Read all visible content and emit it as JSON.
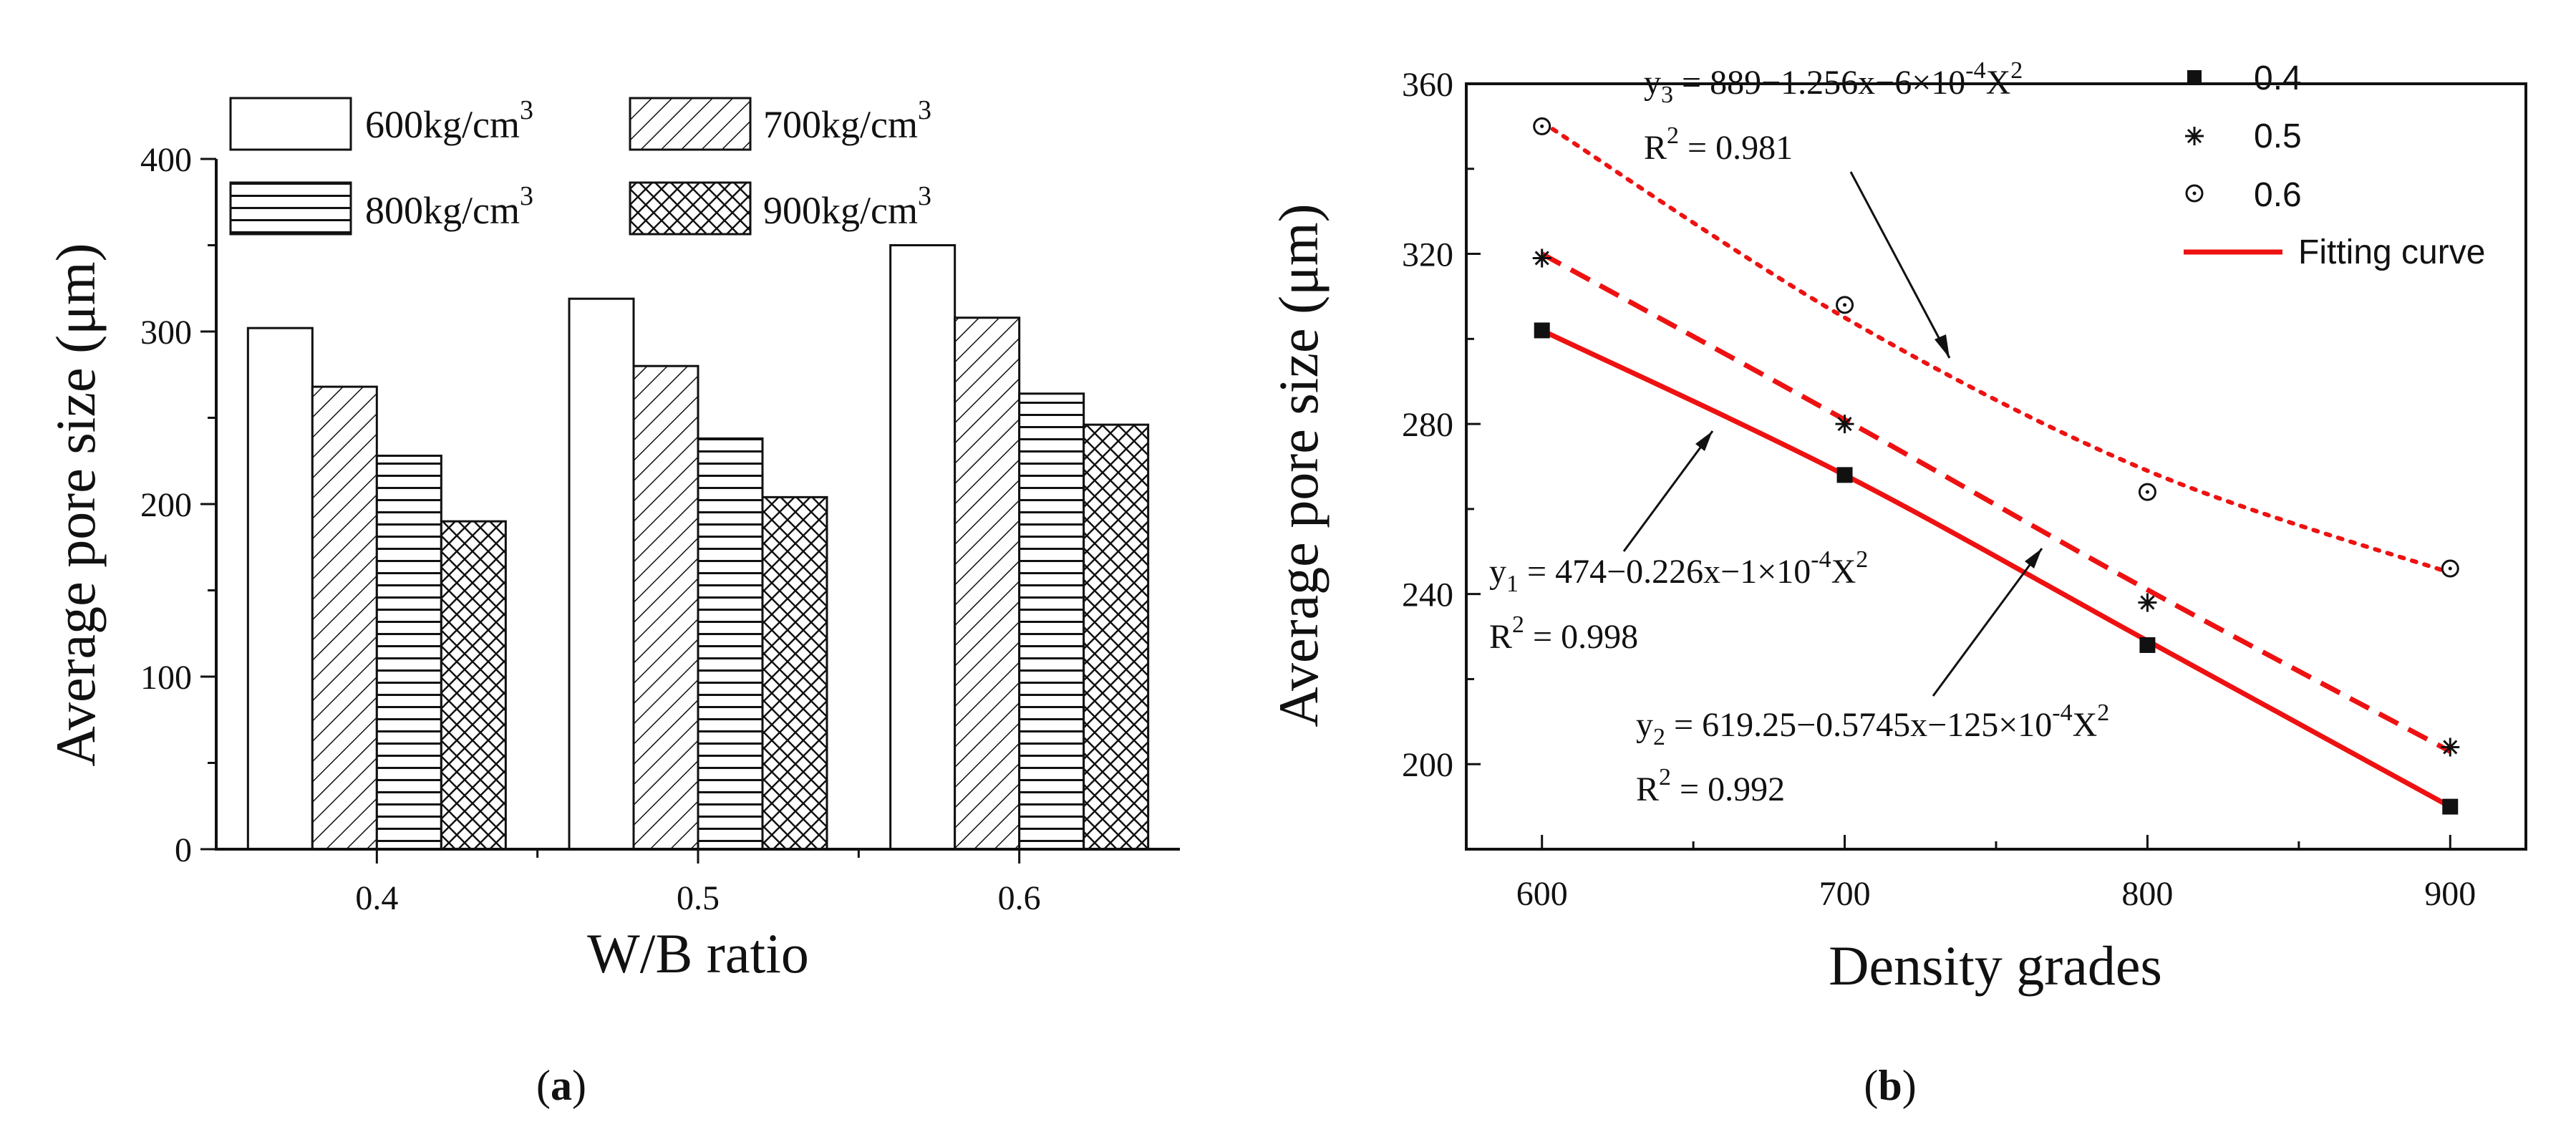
{
  "chart_data": [
    {
      "id": "a",
      "type": "bar",
      "categories": [
        "0.4",
        "0.5",
        "0.6"
      ],
      "series": [
        {
          "name": "600kg/cm",
          "values": [
            302,
            319,
            350
          ],
          "pattern": "none"
        },
        {
          "name": "700kg/cm",
          "values": [
            268,
            280,
            308
          ],
          "pattern": "diagonal"
        },
        {
          "name": "800kg/cm",
          "values": [
            228,
            238,
            264
          ],
          "pattern": "horizontal"
        },
        {
          "name": "900kg/cm",
          "values": [
            190,
            204,
            246
          ],
          "pattern": "crosshatch"
        }
      ],
      "unit_sup": "3",
      "xlabel": "W/B ratio",
      "ylabel": "Average pore size (μm)",
      "ylim": [
        0,
        400
      ],
      "yticks": [
        "0",
        "100",
        "200",
        "300",
        "400"
      ],
      "legend_position": "top",
      "caption_open": "(",
      "caption_letter": "a",
      "caption_close": ")"
    },
    {
      "id": "b",
      "type": "scatter",
      "x": [
        600,
        700,
        800,
        900
      ],
      "series": [
        {
          "name": "0.4",
          "values": [
            302,
            268,
            228,
            190
          ],
          "marker": "square"
        },
        {
          "name": "0.5",
          "values": [
            319,
            280,
            238,
            204
          ],
          "marker": "asterisk"
        },
        {
          "name": "0.6",
          "values": [
            350,
            308,
            264,
            246
          ],
          "marker": "open-circle"
        }
      ],
      "fits": [
        {
          "line": "solid",
          "points": [
            [
              600,
              302
            ],
            [
              700,
              268
            ],
            [
              800,
              229
            ],
            [
              900,
              190
            ]
          ]
        },
        {
          "line": "dashed",
          "points": [
            [
              600,
              320
            ],
            [
              700,
              281
            ],
            [
              800,
              241
            ],
            [
              900,
              203
            ]
          ]
        },
        {
          "line": "dotted",
          "points": [
            [
              600,
              351
            ],
            [
              700,
              305
            ],
            [
              800,
              269
            ],
            [
              900,
              245
            ]
          ]
        }
      ],
      "fit_label": "Fitting curve",
      "fit_color": "#ee1111",
      "annotations": [
        {
          "eq_pre": "y",
          "eq_sub": "3",
          "eq_main": " = 889−1.256x−6×10",
          "eq_sup": "-4",
          "eq_tail": "X",
          "eq_sup2": "2",
          "r2_label": "R",
          "r2_sup": "2",
          "r2_val": " = 0.981"
        },
        {
          "eq_pre": "y",
          "eq_sub": "1",
          "eq_main": "  = 474−0.226x−1×10",
          "eq_sup": "-4",
          "eq_tail": "X",
          "eq_sup2": "2",
          "r2_label": "R",
          "r2_sup": "2",
          "r2_val": " = 0.998"
        },
        {
          "eq_pre": "y",
          "eq_sub": "2",
          "eq_main": "  = 619.25−0.5745x−125×10",
          "eq_sup": "-4",
          "eq_tail": "X",
          "eq_sup2": "2",
          "r2_label": "R",
          "r2_sup": "2",
          "r2_val": " = 0.992"
        }
      ],
      "xlabel": "Density grades",
      "ylabel": "Average pore size (μm)",
      "xlim": [
        575,
        925
      ],
      "ylim": [
        180,
        360
      ],
      "xticks": [
        "600",
        "700",
        "800",
        "900"
      ],
      "yticks": [
        "200",
        "240",
        "280",
        "320",
        "360"
      ],
      "legend_position": "top-right",
      "caption_open": "(",
      "caption_letter": "b",
      "caption_close": ")"
    }
  ]
}
